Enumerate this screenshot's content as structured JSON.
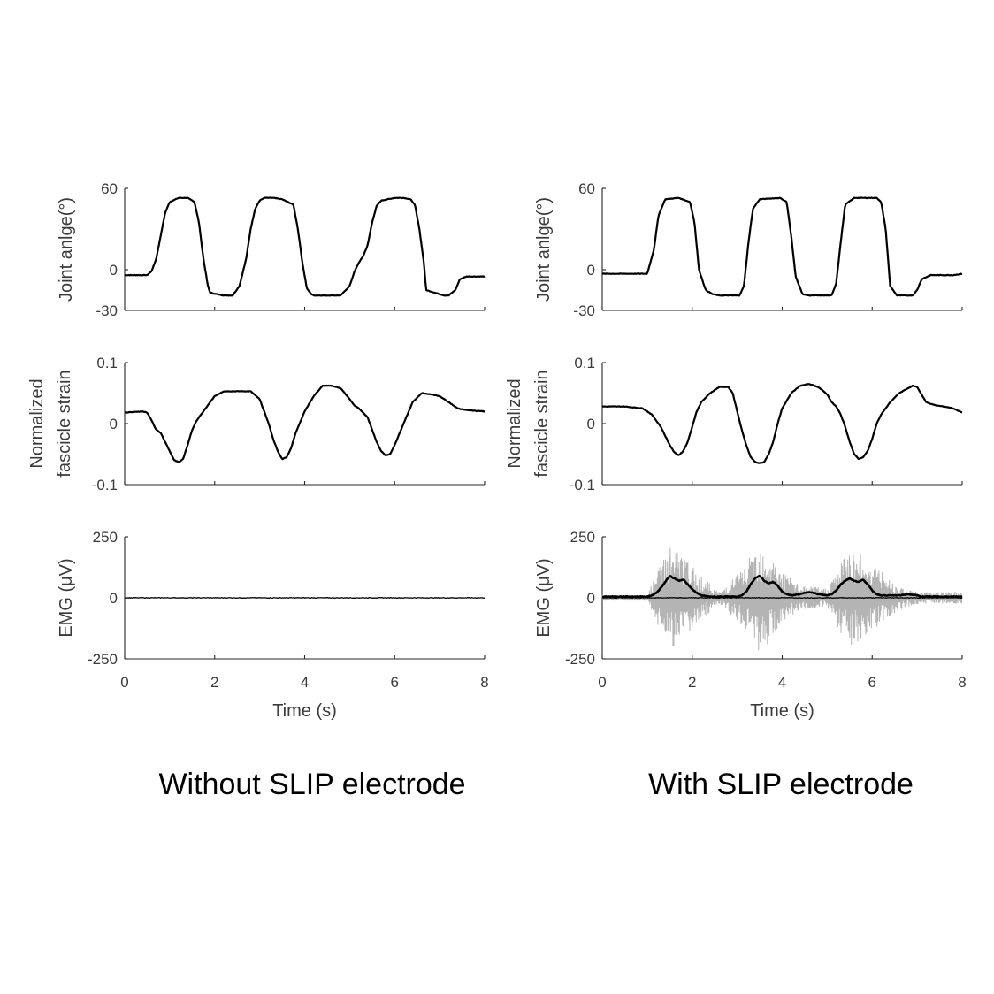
{
  "colors": {
    "trace": "#000000",
    "raw_emg": "#b4b4b4",
    "axis": "#262626",
    "text": "#3a3a3a"
  },
  "captions": {
    "left": "Without SLIP electrode",
    "right": "With SLIP electrode"
  },
  "x_axis": {
    "label": "Time (s)",
    "ticks": [
      "0",
      "2",
      "4",
      "6",
      "8"
    ],
    "range": [
      0,
      8
    ]
  },
  "chart_data": [
    {
      "panel": "without-slip-joint-angle",
      "type": "line",
      "ylabel": "Joint anlge(°)",
      "yticks": [
        "60",
        "0",
        "-30"
      ],
      "ylim": [
        -30,
        60
      ],
      "xlim": [
        0,
        8
      ],
      "series": [
        {
          "x": [
            0,
            0.5,
            0.6,
            0.7,
            0.8,
            0.9,
            1.0,
            1.2,
            1.4,
            1.55,
            1.65,
            1.75,
            1.85,
            1.9,
            2.2,
            2.4,
            2.55,
            2.7,
            2.8,
            2.9,
            3.0,
            3.1,
            3.2,
            3.3,
            3.5,
            3.75,
            3.85,
            3.95,
            4.05,
            4.15,
            4.2,
            4.5,
            4.8,
            5.0,
            5.1,
            5.2,
            5.3,
            5.4,
            5.5,
            5.6,
            5.7,
            6.0,
            6.2,
            6.35,
            6.45,
            6.55,
            6.65,
            6.7,
            7.1,
            7.2,
            7.35,
            7.45,
            7.6,
            7.8,
            8.0
          ],
          "y": [
            -4,
            -4,
            -1,
            8,
            25,
            42,
            50,
            53,
            53,
            50,
            35,
            8,
            -12,
            -17,
            -19,
            -19,
            -12,
            8,
            30,
            45,
            51,
            53,
            53,
            53,
            52,
            48,
            30,
            5,
            -14,
            -18,
            -19,
            -19,
            -19,
            -12,
            -2,
            5,
            10,
            18,
            35,
            47,
            51,
            53,
            53,
            52,
            48,
            30,
            5,
            -15,
            -19,
            -19,
            -15,
            -7,
            -5,
            -5,
            -5
          ]
        }
      ]
    },
    {
      "panel": "without-slip-fascicle-strain",
      "type": "line",
      "ylabel": "Normalized fascicle strain",
      "yticks": [
        "0.1",
        "0",
        "-0.1"
      ],
      "ylim": [
        -0.1,
        0.1
      ],
      "xlim": [
        0,
        8
      ],
      "series": [
        {
          "x": [
            0,
            0.4,
            0.5,
            0.6,
            0.7,
            0.8,
            0.9,
            1.0,
            1.1,
            1.2,
            1.3,
            1.4,
            1.5,
            1.6,
            1.8,
            2.0,
            2.2,
            2.5,
            2.8,
            3.0,
            3.1,
            3.2,
            3.3,
            3.4,
            3.5,
            3.6,
            3.7,
            3.8,
            4.0,
            4.2,
            4.4,
            4.6,
            4.8,
            5.0,
            5.1,
            5.2,
            5.3,
            5.4,
            5.5,
            5.6,
            5.7,
            5.8,
            5.9,
            6.0,
            6.2,
            6.4,
            6.6,
            6.8,
            7.0,
            7.2,
            7.4,
            7.6,
            8.0
          ],
          "y": [
            0.018,
            0.02,
            0.018,
            0.005,
            -0.01,
            -0.015,
            -0.03,
            -0.045,
            -0.06,
            -0.063,
            -0.058,
            -0.035,
            -0.01,
            0.005,
            0.025,
            0.045,
            0.053,
            0.053,
            0.053,
            0.04,
            0.02,
            0.0,
            -0.025,
            -0.045,
            -0.058,
            -0.055,
            -0.04,
            -0.015,
            0.02,
            0.045,
            0.062,
            0.062,
            0.058,
            0.04,
            0.03,
            0.025,
            0.018,
            0.01,
            -0.01,
            -0.03,
            -0.045,
            -0.052,
            -0.05,
            -0.035,
            0.0,
            0.035,
            0.05,
            0.048,
            0.045,
            0.035,
            0.025,
            0.022,
            0.02
          ]
        }
      ]
    },
    {
      "panel": "without-slip-emg",
      "type": "line",
      "ylabel": "EMG (μV)",
      "yticks": [
        "250",
        "0",
        "-250"
      ],
      "ylim": [
        -250,
        250
      ],
      "xlim": [
        0,
        8
      ],
      "series": [
        {
          "x": [
            0,
            8
          ],
          "y": [
            0,
            0
          ]
        }
      ]
    },
    {
      "panel": "with-slip-joint-angle",
      "type": "line",
      "ylabel": "Joint anlge(°)",
      "yticks": [
        "60",
        "0",
        "-30"
      ],
      "ylim": [
        -30,
        60
      ],
      "xlim": [
        0,
        8
      ],
      "series": [
        {
          "x": [
            0,
            0.5,
            1.0,
            1.05,
            1.15,
            1.25,
            1.4,
            1.7,
            1.95,
            2.05,
            2.15,
            2.3,
            2.45,
            2.6,
            2.8,
            3.05,
            3.15,
            3.25,
            3.35,
            3.5,
            3.95,
            4.1,
            4.2,
            4.3,
            4.45,
            4.6,
            4.8,
            5.1,
            5.2,
            5.3,
            5.4,
            5.6,
            6.1,
            6.2,
            6.3,
            6.4,
            6.55,
            6.8,
            6.9,
            7.0,
            7.1,
            7.3,
            7.6,
            7.8,
            8.0
          ],
          "y": [
            -3,
            -3,
            -3,
            3,
            15,
            40,
            52,
            53,
            50,
            35,
            0,
            -15,
            -18,
            -19,
            -19,
            -19,
            -12,
            20,
            45,
            52,
            53,
            50,
            25,
            -5,
            -18,
            -19,
            -19,
            -19,
            -10,
            20,
            48,
            53,
            53,
            50,
            30,
            -12,
            -19,
            -19,
            -19,
            -15,
            -7,
            -4,
            -4,
            -4,
            -3
          ]
        }
      ]
    },
    {
      "panel": "with-slip-fascicle-strain",
      "type": "line",
      "ylabel": "Normalized fascicle strain",
      "yticks": [
        "0.1",
        "0",
        "-0.1"
      ],
      "ylim": [
        -0.1,
        0.1
      ],
      "xlim": [
        0,
        8
      ],
      "series": [
        {
          "x": [
            0,
            0.5,
            0.9,
            1.0,
            1.1,
            1.2,
            1.3,
            1.4,
            1.5,
            1.6,
            1.7,
            1.8,
            1.9,
            2.0,
            2.1,
            2.2,
            2.4,
            2.6,
            2.8,
            2.9,
            3.0,
            3.1,
            3.2,
            3.3,
            3.4,
            3.5,
            3.6,
            3.7,
            3.8,
            3.9,
            4.0,
            4.2,
            4.4,
            4.6,
            4.8,
            5.0,
            5.1,
            5.2,
            5.3,
            5.4,
            5.5,
            5.6,
            5.7,
            5.8,
            5.9,
            6.0,
            6.1,
            6.2,
            6.4,
            6.6,
            6.8,
            6.9,
            7.0,
            7.2,
            7.4,
            7.6,
            7.8,
            8.0
          ],
          "y": [
            0.028,
            0.028,
            0.025,
            0.02,
            0.015,
            0.005,
            -0.005,
            -0.02,
            -0.035,
            -0.047,
            -0.052,
            -0.045,
            -0.03,
            -0.005,
            0.02,
            0.035,
            0.05,
            0.06,
            0.06,
            0.05,
            0.02,
            -0.01,
            -0.035,
            -0.055,
            -0.063,
            -0.065,
            -0.063,
            -0.05,
            -0.03,
            0.0,
            0.025,
            0.05,
            0.062,
            0.065,
            0.06,
            0.048,
            0.035,
            0.028,
            0.015,
            -0.005,
            -0.03,
            -0.05,
            -0.058,
            -0.055,
            -0.045,
            -0.025,
            0.0,
            0.015,
            0.035,
            0.05,
            0.058,
            0.062,
            0.06,
            0.035,
            0.03,
            0.028,
            0.025,
            0.018
          ]
        }
      ]
    },
    {
      "panel": "with-slip-emg",
      "type": "line",
      "ylabel": "EMG (μV)",
      "yticks": [
        "250",
        "0",
        "-250"
      ],
      "ylim": [
        -250,
        250
      ],
      "xlim": [
        0,
        8
      ],
      "series": [
        {
          "x": [
            0,
            1.0,
            1.1,
            1.2,
            1.3,
            1.4,
            1.5,
            1.6,
            1.7,
            1.8,
            1.9,
            2.0,
            2.1,
            2.2,
            2.4,
            2.6,
            2.8,
            3.0,
            3.1,
            3.2,
            3.3,
            3.4,
            3.5,
            3.6,
            3.7,
            3.8,
            3.9,
            4.0,
            4.1,
            4.2,
            4.4,
            4.6,
            4.8,
            5.0,
            5.1,
            5.2,
            5.3,
            5.4,
            5.5,
            5.6,
            5.7,
            5.8,
            5.9,
            6.0,
            6.1,
            6.2,
            6.4,
            6.6,
            6.8,
            7.0,
            7.1,
            7.2,
            8.0
          ],
          "y": [
            5,
            5,
            10,
            20,
            40,
            65,
            90,
            80,
            70,
            75,
            55,
            35,
            20,
            10,
            5,
            5,
            5,
            5,
            10,
            25,
            55,
            80,
            90,
            70,
            60,
            65,
            50,
            25,
            15,
            10,
            15,
            25,
            15,
            10,
            15,
            30,
            55,
            70,
            80,
            70,
            65,
            75,
            55,
            30,
            15,
            10,
            10,
            10,
            15,
            10,
            5,
            5,
            5
          ]
        },
        {
          "x": [
            0,
            8
          ],
          "y": [
            0,
            0
          ]
        }
      ],
      "raw_emg_envelope": {
        "x": [
          1.0,
          1.5,
          2.1,
          2.6,
          3.2,
          3.5,
          4.0,
          4.4,
          5.0,
          5.5,
          6.0,
          6.6,
          7.0
        ],
        "amplitude": [
          12,
          230,
          110,
          25,
          140,
          240,
          110,
          50,
          40,
          215,
          140,
          50,
          25
        ]
      }
    }
  ]
}
